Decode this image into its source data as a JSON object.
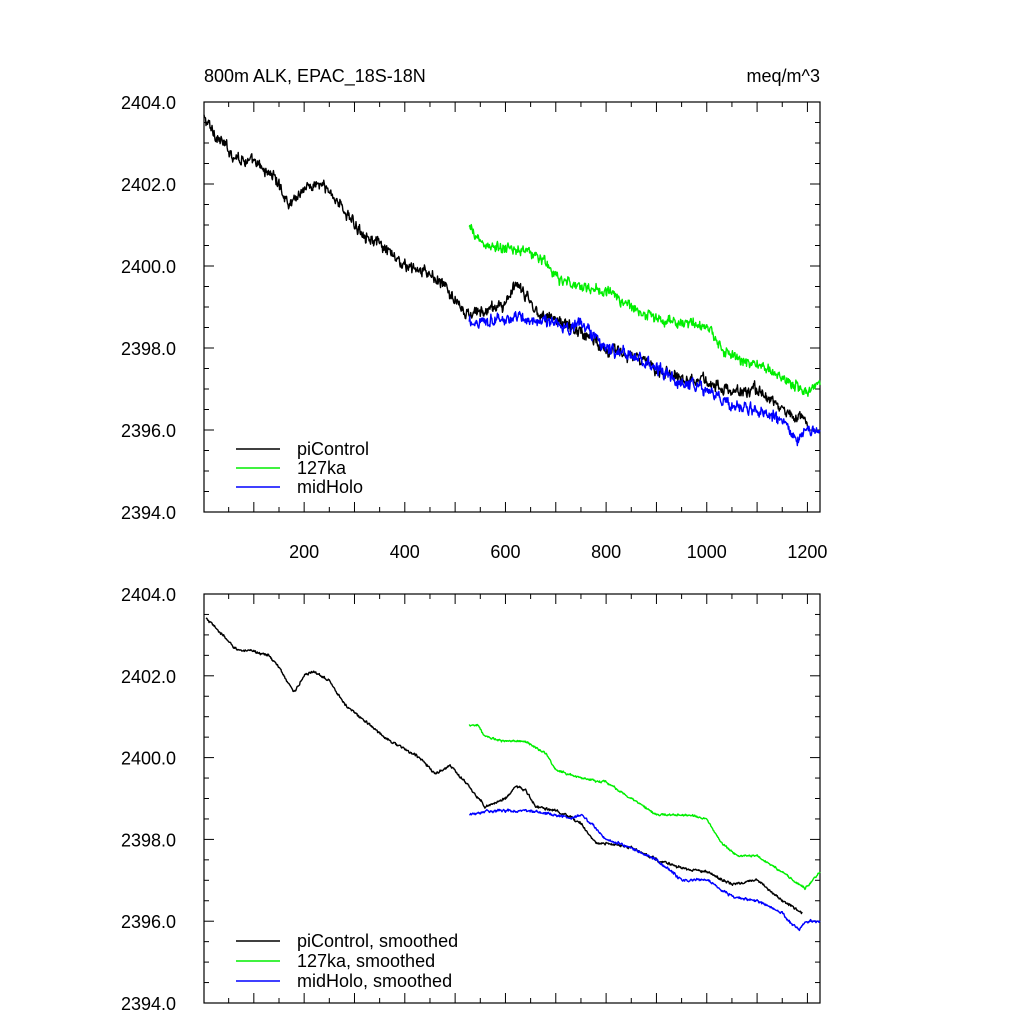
{
  "chart_data": [
    {
      "type": "line",
      "title_left": "800m ALK, EPAC_18S-18N",
      "title_right": "meq/m^3",
      "xlabel": "",
      "ylabel": "",
      "xlim": [
        1,
        1225
      ],
      "ylim": [
        2394.0,
        2404.0
      ],
      "x_ticks": [
        200,
        400,
        600,
        800,
        1000,
        1200
      ],
      "x_tick_labels": [
        "200",
        "400",
        "600",
        "800",
        "1000",
        "1200"
      ],
      "y_ticks": [
        2394,
        2396,
        2398,
        2400,
        2402,
        2404
      ],
      "y_tick_labels": [
        "2394.0",
        "2396.0",
        "2398.0",
        "2400.0",
        "2402.0",
        "2404.0"
      ],
      "legend_position": "bottom-left",
      "series": [
        {
          "name": "piControl",
          "color": "#000000",
          "noise": 0.22,
          "anchors_x": [
            1,
            30,
            60,
            100,
            140,
            170,
            200,
            230,
            260,
            300,
            350,
            400,
            450,
            480,
            520,
            560,
            600,
            620,
            640,
            660,
            700,
            750,
            800,
            850,
            900,
            950,
            1000,
            1050,
            1100,
            1150,
            1200
          ],
          "anchors_y": [
            2403.6,
            2403.1,
            2402.7,
            2402.5,
            2402.2,
            2401.5,
            2401.9,
            2402.0,
            2401.7,
            2401.0,
            2400.5,
            2400.0,
            2399.8,
            2399.5,
            2398.8,
            2398.9,
            2399.1,
            2399.5,
            2399.3,
            2398.9,
            2398.7,
            2398.4,
            2398.0,
            2397.8,
            2397.5,
            2397.3,
            2397.2,
            2396.9,
            2397.0,
            2396.5,
            2396.2
          ]
        },
        {
          "name": "127ka",
          "color": "#00ee00",
          "noise": 0.2,
          "anchors_x": [
            528,
            560,
            600,
            640,
            680,
            700,
            750,
            800,
            850,
            900,
            960,
            1000,
            1030,
            1060,
            1100,
            1150,
            1200,
            1225
          ],
          "anchors_y": [
            2400.9,
            2400.5,
            2400.4,
            2400.4,
            2400.1,
            2399.7,
            2399.5,
            2399.4,
            2399.0,
            2398.7,
            2398.6,
            2398.5,
            2398.0,
            2397.7,
            2397.6,
            2397.3,
            2396.9,
            2397.2
          ]
        },
        {
          "name": "midHolo",
          "color": "#0000ff",
          "noise": 0.22,
          "anchors_x": [
            528,
            560,
            600,
            650,
            700,
            730,
            750,
            770,
            800,
            850,
            900,
            950,
            1000,
            1050,
            1100,
            1150,
            1180,
            1200,
            1225
          ],
          "anchors_y": [
            2398.6,
            2398.7,
            2398.7,
            2398.7,
            2398.6,
            2398.5,
            2398.6,
            2398.4,
            2398.0,
            2397.8,
            2397.5,
            2397.1,
            2397.0,
            2396.6,
            2396.5,
            2396.2,
            2395.7,
            2396.0,
            2395.9
          ]
        }
      ]
    },
    {
      "type": "line",
      "title_left": "",
      "title_right": "",
      "xlabel": "",
      "ylabel": "",
      "xlim": [
        1,
        1225
      ],
      "ylim": [
        2394.0,
        2404.0
      ],
      "x_ticks": [
        200,
        400,
        600,
        800,
        1000,
        1200
      ],
      "x_tick_labels": [],
      "y_ticks": [
        2394,
        2396,
        2398,
        2400,
        2402,
        2404
      ],
      "y_tick_labels": [
        "2394.0",
        "2396.0",
        "2398.0",
        "2400.0",
        "2402.0",
        "2404.0"
      ],
      "legend_position": "bottom-left",
      "series": [
        {
          "name": "piControl, smoothed",
          "color": "#000000",
          "noise": 0.05,
          "anchors_x": [
            5,
            30,
            60,
            80,
            100,
            130,
            150,
            180,
            200,
            220,
            250,
            280,
            320,
            360,
            400,
            430,
            460,
            490,
            520,
            560,
            600,
            620,
            640,
            660,
            700,
            750,
            780,
            800,
            850,
            900,
            950,
            1000,
            1050,
            1100,
            1150,
            1190
          ],
          "anchors_y": [
            2403.4,
            2403.1,
            2402.7,
            2402.6,
            2402.6,
            2402.5,
            2402.2,
            2401.6,
            2402.0,
            2402.1,
            2401.9,
            2401.3,
            2400.9,
            2400.5,
            2400.2,
            2400.0,
            2399.6,
            2399.8,
            2399.4,
            2398.8,
            2399.0,
            2399.3,
            2399.2,
            2398.8,
            2398.7,
            2398.4,
            2397.9,
            2397.9,
            2397.8,
            2397.5,
            2397.3,
            2397.2,
            2396.9,
            2397.0,
            2396.5,
            2396.2
          ]
        },
        {
          "name": "127ka, smoothed",
          "color": "#00ee00",
          "noise": 0.04,
          "anchors_x": [
            528,
            545,
            560,
            600,
            640,
            680,
            700,
            750,
            800,
            850,
            900,
            960,
            1000,
            1030,
            1060,
            1100,
            1150,
            1195,
            1225
          ],
          "anchors_y": [
            2400.8,
            2400.8,
            2400.5,
            2400.4,
            2400.4,
            2400.1,
            2399.7,
            2399.5,
            2399.4,
            2399.0,
            2398.6,
            2398.6,
            2398.5,
            2397.9,
            2397.6,
            2397.6,
            2397.2,
            2396.8,
            2397.2
          ]
        },
        {
          "name": "midHolo, smoothed",
          "color": "#0000ff",
          "noise": 0.05,
          "anchors_x": [
            528,
            560,
            600,
            640,
            700,
            730,
            750,
            770,
            800,
            850,
            900,
            950,
            1000,
            1050,
            1100,
            1150,
            1170,
            1185,
            1195,
            1225
          ],
          "anchors_y": [
            2398.6,
            2398.7,
            2398.7,
            2398.7,
            2398.6,
            2398.5,
            2398.6,
            2398.4,
            2398.0,
            2397.8,
            2397.5,
            2397.0,
            2397.0,
            2396.6,
            2396.5,
            2396.2,
            2395.9,
            2395.8,
            2396.0,
            2396.0
          ]
        }
      ]
    }
  ]
}
